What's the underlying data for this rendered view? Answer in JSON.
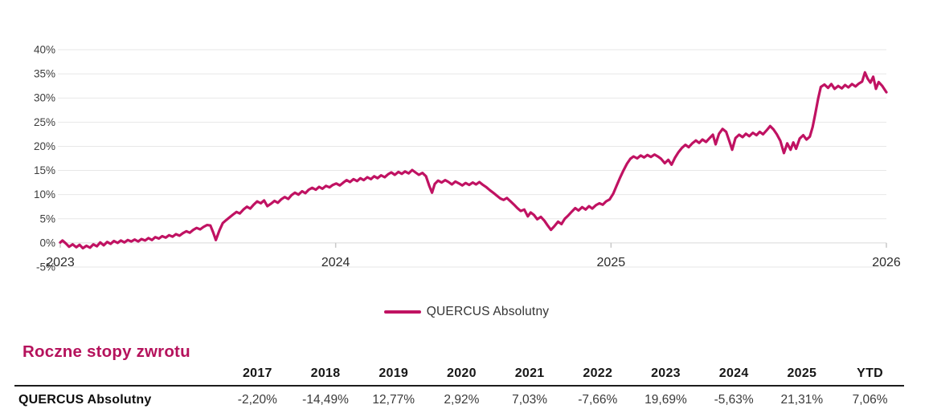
{
  "page": {
    "background": "#ffffff"
  },
  "chart": {
    "legend": {
      "label": "QUERCUS Absolutny",
      "swatch_color": "#C01262"
    }
  },
  "chart_data": {
    "type": "line",
    "title": "",
    "xlabel": "",
    "ylabel": "",
    "xlim": [
      0,
      3
    ],
    "ylim": [
      -5,
      40
    ],
    "grid": "horizontal",
    "legend_position": "bottom-center",
    "line_color": "#C01262",
    "x_ticks": [
      {
        "pos": 0,
        "label": "2023"
      },
      {
        "pos": 1,
        "label": "2024"
      },
      {
        "pos": 2,
        "label": "2025"
      },
      {
        "pos": 3,
        "label": "2026"
      }
    ],
    "y_ticks": [
      {
        "pos": 40,
        "label": "40%"
      },
      {
        "pos": 35,
        "label": "35%"
      },
      {
        "pos": 30,
        "label": "30%"
      },
      {
        "pos": 25,
        "label": "25%"
      },
      {
        "pos": 20,
        "label": "20%"
      },
      {
        "pos": 15,
        "label": "15%"
      },
      {
        "pos": 10,
        "label": "10%"
      },
      {
        "pos": 5,
        "label": "5%"
      },
      {
        "pos": 0,
        "label": "0%"
      },
      {
        "pos": -5,
        "label": "-5%"
      }
    ],
    "series": [
      {
        "name": "QUERCUS Absolutny",
        "color": "#C01262",
        "points": [
          [
            0.0,
            0.1
          ],
          [
            0.008,
            0.5
          ],
          [
            0.02,
            -0.1
          ],
          [
            0.032,
            -0.8
          ],
          [
            0.045,
            -0.3
          ],
          [
            0.058,
            -0.9
          ],
          [
            0.07,
            -0.4
          ],
          [
            0.082,
            -1.1
          ],
          [
            0.095,
            -0.6
          ],
          [
            0.108,
            -1.0
          ],
          [
            0.12,
            -0.3
          ],
          [
            0.133,
            -0.7
          ],
          [
            0.145,
            0.1
          ],
          [
            0.158,
            -0.5
          ],
          [
            0.17,
            0.2
          ],
          [
            0.183,
            -0.2
          ],
          [
            0.195,
            0.4
          ],
          [
            0.208,
            0.0
          ],
          [
            0.22,
            0.5
          ],
          [
            0.233,
            0.1
          ],
          [
            0.245,
            0.6
          ],
          [
            0.258,
            0.3
          ],
          [
            0.27,
            0.7
          ],
          [
            0.283,
            0.3
          ],
          [
            0.295,
            0.8
          ],
          [
            0.308,
            0.5
          ],
          [
            0.32,
            1.0
          ],
          [
            0.333,
            0.6
          ],
          [
            0.345,
            1.2
          ],
          [
            0.358,
            0.9
          ],
          [
            0.37,
            1.4
          ],
          [
            0.383,
            1.1
          ],
          [
            0.395,
            1.6
          ],
          [
            0.408,
            1.3
          ],
          [
            0.42,
            1.8
          ],
          [
            0.433,
            1.5
          ],
          [
            0.445,
            2.0
          ],
          [
            0.458,
            2.4
          ],
          [
            0.47,
            2.1
          ],
          [
            0.483,
            2.7
          ],
          [
            0.495,
            3.1
          ],
          [
            0.508,
            2.8
          ],
          [
            0.52,
            3.3
          ],
          [
            0.533,
            3.7
          ],
          [
            0.545,
            3.6
          ],
          [
            0.555,
            2.2
          ],
          [
            0.565,
            0.6
          ],
          [
            0.578,
            2.6
          ],
          [
            0.59,
            4.1
          ],
          [
            0.602,
            4.7
          ],
          [
            0.615,
            5.3
          ],
          [
            0.628,
            5.9
          ],
          [
            0.64,
            6.4
          ],
          [
            0.652,
            6.1
          ],
          [
            0.665,
            6.9
          ],
          [
            0.678,
            7.5
          ],
          [
            0.69,
            7.1
          ],
          [
            0.702,
            7.9
          ],
          [
            0.715,
            8.6
          ],
          [
            0.728,
            8.2
          ],
          [
            0.74,
            8.8
          ],
          [
            0.752,
            7.6
          ],
          [
            0.765,
            8.1
          ],
          [
            0.778,
            8.7
          ],
          [
            0.79,
            8.3
          ],
          [
            0.802,
            9.0
          ],
          [
            0.815,
            9.5
          ],
          [
            0.828,
            9.1
          ],
          [
            0.84,
            9.9
          ],
          [
            0.852,
            10.4
          ],
          [
            0.865,
            10.0
          ],
          [
            0.878,
            10.7
          ],
          [
            0.89,
            10.3
          ],
          [
            0.902,
            11.0
          ],
          [
            0.915,
            11.4
          ],
          [
            0.928,
            11.0
          ],
          [
            0.94,
            11.6
          ],
          [
            0.952,
            11.2
          ],
          [
            0.965,
            11.8
          ],
          [
            0.978,
            11.5
          ],
          [
            0.99,
            12.0
          ],
          [
            1.002,
            12.3
          ],
          [
            1.015,
            11.9
          ],
          [
            1.028,
            12.5
          ],
          [
            1.04,
            13.0
          ],
          [
            1.052,
            12.6
          ],
          [
            1.065,
            13.2
          ],
          [
            1.078,
            12.8
          ],
          [
            1.09,
            13.4
          ],
          [
            1.102,
            13.0
          ],
          [
            1.115,
            13.6
          ],
          [
            1.128,
            13.2
          ],
          [
            1.14,
            13.8
          ],
          [
            1.152,
            13.4
          ],
          [
            1.165,
            14.0
          ],
          [
            1.178,
            13.6
          ],
          [
            1.19,
            14.2
          ],
          [
            1.202,
            14.6
          ],
          [
            1.215,
            14.1
          ],
          [
            1.228,
            14.7
          ],
          [
            1.24,
            14.3
          ],
          [
            1.252,
            14.8
          ],
          [
            1.265,
            14.4
          ],
          [
            1.278,
            15.1
          ],
          [
            1.29,
            14.6
          ],
          [
            1.302,
            14.1
          ],
          [
            1.315,
            14.5
          ],
          [
            1.328,
            13.8
          ],
          [
            1.34,
            11.8
          ],
          [
            1.35,
            10.4
          ],
          [
            1.36,
            12.2
          ],
          [
            1.372,
            12.9
          ],
          [
            1.385,
            12.5
          ],
          [
            1.398,
            13.0
          ],
          [
            1.41,
            12.6
          ],
          [
            1.422,
            12.1
          ],
          [
            1.435,
            12.7
          ],
          [
            1.448,
            12.3
          ],
          [
            1.46,
            11.9
          ],
          [
            1.472,
            12.4
          ],
          [
            1.485,
            12.0
          ],
          [
            1.498,
            12.5
          ],
          [
            1.51,
            12.1
          ],
          [
            1.522,
            12.6
          ],
          [
            1.535,
            12.0
          ],
          [
            1.548,
            11.5
          ],
          [
            1.56,
            10.9
          ],
          [
            1.572,
            10.4
          ],
          [
            1.585,
            9.8
          ],
          [
            1.598,
            9.2
          ],
          [
            1.61,
            8.9
          ],
          [
            1.622,
            9.3
          ],
          [
            1.635,
            8.6
          ],
          [
            1.648,
            7.9
          ],
          [
            1.66,
            7.2
          ],
          [
            1.672,
            6.6
          ],
          [
            1.685,
            6.9
          ],
          [
            1.698,
            5.5
          ],
          [
            1.708,
            6.3
          ],
          [
            1.72,
            5.8
          ],
          [
            1.732,
            4.9
          ],
          [
            1.745,
            5.4
          ],
          [
            1.758,
            4.6
          ],
          [
            1.77,
            3.6
          ],
          [
            1.782,
            2.7
          ],
          [
            1.795,
            3.5
          ],
          [
            1.808,
            4.4
          ],
          [
            1.82,
            3.9
          ],
          [
            1.832,
            5.0
          ],
          [
            1.845,
            5.7
          ],
          [
            1.858,
            6.5
          ],
          [
            1.87,
            7.2
          ],
          [
            1.882,
            6.7
          ],
          [
            1.895,
            7.4
          ],
          [
            1.908,
            6.9
          ],
          [
            1.92,
            7.6
          ],
          [
            1.932,
            7.1
          ],
          [
            1.945,
            7.8
          ],
          [
            1.958,
            8.2
          ],
          [
            1.97,
            7.9
          ],
          [
            1.982,
            8.6
          ],
          [
            1.995,
            9.0
          ],
          [
            2.008,
            10.2
          ],
          [
            2.02,
            11.8
          ],
          [
            2.032,
            13.4
          ],
          [
            2.045,
            15.0
          ],
          [
            2.058,
            16.4
          ],
          [
            2.07,
            17.4
          ],
          [
            2.082,
            17.9
          ],
          [
            2.095,
            17.5
          ],
          [
            2.108,
            18.1
          ],
          [
            2.12,
            17.7
          ],
          [
            2.132,
            18.2
          ],
          [
            2.145,
            17.8
          ],
          [
            2.158,
            18.3
          ],
          [
            2.17,
            17.9
          ],
          [
            2.182,
            17.4
          ],
          [
            2.195,
            16.5
          ],
          [
            2.208,
            17.2
          ],
          [
            2.22,
            16.2
          ],
          [
            2.232,
            17.6
          ],
          [
            2.245,
            18.8
          ],
          [
            2.258,
            19.7
          ],
          [
            2.27,
            20.3
          ],
          [
            2.282,
            19.8
          ],
          [
            2.295,
            20.6
          ],
          [
            2.308,
            21.2
          ],
          [
            2.32,
            20.7
          ],
          [
            2.332,
            21.4
          ],
          [
            2.345,
            20.9
          ],
          [
            2.358,
            21.7
          ],
          [
            2.37,
            22.4
          ],
          [
            2.38,
            20.4
          ],
          [
            2.392,
            22.6
          ],
          [
            2.405,
            23.6
          ],
          [
            2.418,
            23.0
          ],
          [
            2.43,
            21.0
          ],
          [
            2.44,
            19.3
          ],
          [
            2.452,
            21.7
          ],
          [
            2.465,
            22.4
          ],
          [
            2.478,
            21.9
          ],
          [
            2.49,
            22.6
          ],
          [
            2.502,
            22.1
          ],
          [
            2.515,
            22.8
          ],
          [
            2.528,
            22.3
          ],
          [
            2.54,
            23.0
          ],
          [
            2.552,
            22.5
          ],
          [
            2.565,
            23.3
          ],
          [
            2.578,
            24.2
          ],
          [
            2.59,
            23.5
          ],
          [
            2.602,
            22.5
          ],
          [
            2.615,
            21.1
          ],
          [
            2.628,
            18.6
          ],
          [
            2.64,
            20.6
          ],
          [
            2.652,
            19.3
          ],
          [
            2.662,
            20.8
          ],
          [
            2.672,
            19.5
          ],
          [
            2.685,
            21.6
          ],
          [
            2.698,
            22.3
          ],
          [
            2.71,
            21.4
          ],
          [
            2.722,
            22.0
          ],
          [
            2.732,
            24.0
          ],
          [
            2.742,
            26.8
          ],
          [
            2.752,
            29.8
          ],
          [
            2.762,
            32.3
          ],
          [
            2.775,
            32.8
          ],
          [
            2.788,
            32.1
          ],
          [
            2.8,
            32.9
          ],
          [
            2.812,
            31.9
          ],
          [
            2.825,
            32.5
          ],
          [
            2.838,
            32.0
          ],
          [
            2.85,
            32.7
          ],
          [
            2.862,
            32.2
          ],
          [
            2.875,
            32.9
          ],
          [
            2.888,
            32.4
          ],
          [
            2.9,
            33.0
          ],
          [
            2.912,
            33.4
          ],
          [
            2.922,
            35.3
          ],
          [
            2.932,
            34.0
          ],
          [
            2.942,
            33.2
          ],
          [
            2.952,
            34.4
          ],
          [
            2.962,
            31.9
          ],
          [
            2.972,
            33.3
          ],
          [
            2.985,
            32.5
          ],
          [
            3.0,
            31.2
          ]
        ]
      }
    ]
  },
  "returns_table": {
    "title": "Roczne stopy zwrotu",
    "title_color": "#B5125C",
    "row_label": "QUERCUS Absolutny",
    "years": [
      "2017",
      "2018",
      "2019",
      "2020",
      "2021",
      "2022",
      "2023",
      "2024",
      "2025",
      "YTD"
    ],
    "values": [
      "-2,20%",
      "-14,49%",
      "12,77%",
      "2,92%",
      "7,03%",
      "-7,66%",
      "19,69%",
      "-5,63%",
      "21,31%",
      "7,06%"
    ],
    "negative_color": "#B22A23"
  }
}
